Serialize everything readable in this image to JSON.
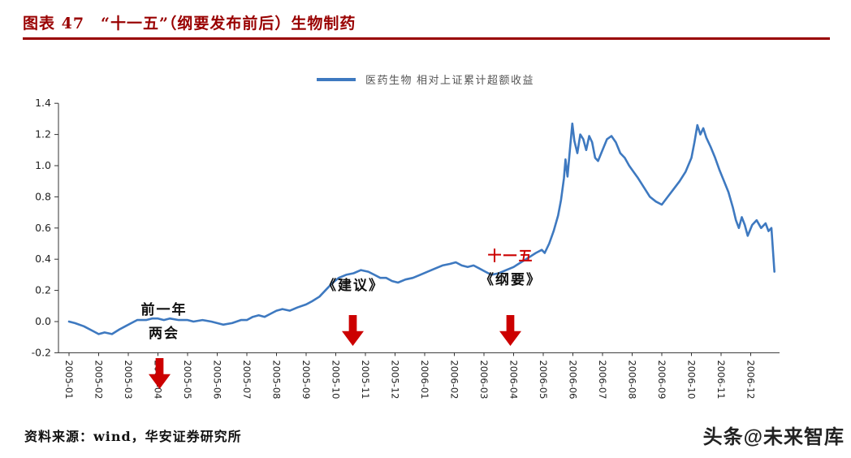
{
  "page": {
    "source_label": "资料来源：wind，华安证券研究所",
    "watermark": "头条@未来智库"
  },
  "colors": {
    "title_maroon": "#990000",
    "line_blue": "#3E79C0",
    "arrow_red": "#CC0000"
  },
  "chart_data": {
    "type": "line",
    "title": "图表 47　“十一五”（纲要发布前后）生物制药",
    "legend": [
      {
        "label": "医药生物 相对上证累计超额收益",
        "color": "#3E79C0"
      }
    ],
    "ylim": [
      -0.2,
      1.4
    ],
    "yticks": [
      1.4,
      1.2,
      1.0,
      0.8,
      0.6,
      0.4,
      0.2,
      0.0,
      -0.2
    ],
    "grid": false,
    "legend_position": "top-center",
    "x_labels": [
      "2005-01",
      "2005-02",
      "2005-03",
      "2005-04",
      "2005-05",
      "2005-06",
      "2005-07",
      "2005-08",
      "2005-09",
      "2005-10",
      "2005-11",
      "2005-12",
      "2006-01",
      "2006-02",
      "2006-03",
      "2006-04",
      "2006-05",
      "2006-06",
      "2006-07",
      "2006-08",
      "2006-09",
      "2006-10",
      "2006-11",
      "2006-12"
    ],
    "annotations": [
      {
        "lines": [
          "前一年",
          "两会"
        ]
      },
      {
        "lines": [
          "《建议》"
        ]
      },
      {
        "lines": [
          "十一五",
          "《纲要》"
        ]
      }
    ],
    "series": [
      {
        "name": "医药生物 相对上证累计超额收益",
        "color": "#3E79C0",
        "points": [
          [
            0,
            0
          ],
          [
            0.2,
            -0.01
          ],
          [
            0.5,
            -0.03
          ],
          [
            0.8,
            -0.06
          ],
          [
            1,
            -0.08
          ],
          [
            1.2,
            -0.07
          ],
          [
            1.45,
            -0.08
          ],
          [
            1.7,
            -0.05
          ],
          [
            1.9,
            -0.03
          ],
          [
            2.1,
            -0.01
          ],
          [
            2.3,
            0.01
          ],
          [
            2.6,
            0.01
          ],
          [
            2.8,
            0.02
          ],
          [
            3,
            0.02
          ],
          [
            3.2,
            0.01
          ],
          [
            3.4,
            0.02
          ],
          [
            3.7,
            0.01
          ],
          [
            4,
            0.01
          ],
          [
            4.2,
            0
          ],
          [
            4.5,
            0.01
          ],
          [
            4.8,
            0
          ],
          [
            5,
            -0.01
          ],
          [
            5.2,
            -0.02
          ],
          [
            5.5,
            -0.01
          ],
          [
            5.8,
            0.01
          ],
          [
            6,
            0.01
          ],
          [
            6.2,
            0.03
          ],
          [
            6.4,
            0.04
          ],
          [
            6.6,
            0.03
          ],
          [
            6.8,
            0.05
          ],
          [
            7,
            0.07
          ],
          [
            7.2,
            0.08
          ],
          [
            7.45,
            0.07
          ],
          [
            7.7,
            0.09
          ],
          [
            8,
            0.11
          ],
          [
            8.2,
            0.13
          ],
          [
            8.45,
            0.16
          ],
          [
            8.7,
            0.21
          ],
          [
            8.9,
            0.25
          ],
          [
            9.1,
            0.28
          ],
          [
            9.35,
            0.3
          ],
          [
            9.6,
            0.31
          ],
          [
            9.85,
            0.33
          ],
          [
            10.1,
            0.32
          ],
          [
            10.3,
            0.3
          ],
          [
            10.5,
            0.28
          ],
          [
            10.7,
            0.28
          ],
          [
            10.9,
            0.26
          ],
          [
            11.1,
            0.25
          ],
          [
            11.35,
            0.27
          ],
          [
            11.6,
            0.28
          ],
          [
            11.85,
            0.3
          ],
          [
            12.1,
            0.32
          ],
          [
            12.35,
            0.34
          ],
          [
            12.6,
            0.36
          ],
          [
            12.85,
            0.37
          ],
          [
            13.05,
            0.38
          ],
          [
            13.25,
            0.36
          ],
          [
            13.45,
            0.35
          ],
          [
            13.65,
            0.36
          ],
          [
            13.85,
            0.34
          ],
          [
            14.05,
            0.32
          ],
          [
            14.25,
            0.3
          ],
          [
            14.5,
            0.31
          ],
          [
            14.75,
            0.33
          ],
          [
            15,
            0.35
          ],
          [
            15.25,
            0.38
          ],
          [
            15.5,
            0.41
          ],
          [
            15.75,
            0.44
          ],
          [
            15.95,
            0.46
          ],
          [
            16.05,
            0.44
          ],
          [
            16.2,
            0.5
          ],
          [
            16.35,
            0.58
          ],
          [
            16.5,
            0.68
          ],
          [
            16.6,
            0.78
          ],
          [
            16.7,
            0.92
          ],
          [
            16.75,
            1.04
          ],
          [
            16.82,
            0.93
          ],
          [
            16.9,
            1.1
          ],
          [
            16.98,
            1.27
          ],
          [
            17.05,
            1.16
          ],
          [
            17.15,
            1.08
          ],
          [
            17.25,
            1.2
          ],
          [
            17.35,
            1.17
          ],
          [
            17.45,
            1.1
          ],
          [
            17.55,
            1.19
          ],
          [
            17.65,
            1.15
          ],
          [
            17.75,
            1.05
          ],
          [
            17.85,
            1.03
          ],
          [
            18,
            1.1
          ],
          [
            18.15,
            1.17
          ],
          [
            18.3,
            1.19
          ],
          [
            18.45,
            1.15
          ],
          [
            18.6,
            1.08
          ],
          [
            18.75,
            1.05
          ],
          [
            18.9,
            1.0
          ],
          [
            19.05,
            0.96
          ],
          [
            19.2,
            0.92
          ],
          [
            19.4,
            0.86
          ],
          [
            19.6,
            0.8
          ],
          [
            19.8,
            0.77
          ],
          [
            20,
            0.75
          ],
          [
            20.2,
            0.8
          ],
          [
            20.4,
            0.85
          ],
          [
            20.6,
            0.9
          ],
          [
            20.8,
            0.96
          ],
          [
            21,
            1.05
          ],
          [
            21.1,
            1.15
          ],
          [
            21.2,
            1.26
          ],
          [
            21.3,
            1.2
          ],
          [
            21.4,
            1.24
          ],
          [
            21.5,
            1.18
          ],
          [
            21.65,
            1.12
          ],
          [
            21.8,
            1.05
          ],
          [
            21.95,
            0.97
          ],
          [
            22.1,
            0.9
          ],
          [
            22.25,
            0.83
          ],
          [
            22.4,
            0.73
          ],
          [
            22.5,
            0.65
          ],
          [
            22.6,
            0.6
          ],
          [
            22.7,
            0.67
          ],
          [
            22.8,
            0.62
          ],
          [
            22.9,
            0.55
          ],
          [
            23.05,
            0.62
          ],
          [
            23.2,
            0.65
          ],
          [
            23.35,
            0.6
          ],
          [
            23.5,
            0.63
          ],
          [
            23.6,
            0.58
          ],
          [
            23.7,
            0.6
          ],
          [
            23.8,
            0.32
          ]
        ]
      }
    ]
  }
}
